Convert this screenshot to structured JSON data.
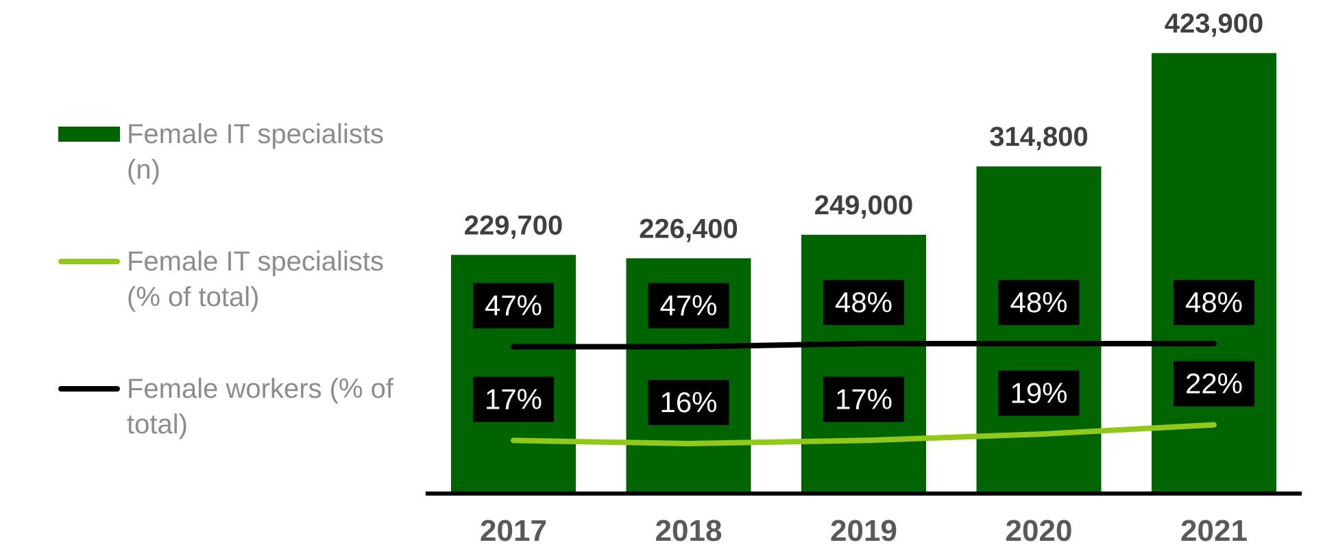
{
  "chart_data": {
    "type": "bar",
    "categories": [
      "2017",
      "2018",
      "2019",
      "2020",
      "2021"
    ],
    "ylim": [
      0,
      475000
    ],
    "y2lim": [
      0,
      158
    ],
    "series": [
      {
        "name": "Female IT specialists (n)",
        "type": "bar",
        "color": "#006400",
        "values": [
          229700,
          226400,
          249000,
          314800,
          423900
        ],
        "value_labels": [
          "229,700",
          "226,400",
          "249,000",
          "314,800",
          "423,900"
        ]
      },
      {
        "name": "Female IT specialists (% of total)",
        "type": "line",
        "axis": "y2",
        "color": "#92c81a",
        "values": [
          17,
          16,
          17,
          19,
          22
        ],
        "value_labels": [
          "17%",
          "16%",
          "17%",
          "19%",
          "22%"
        ]
      },
      {
        "name": "Female workers (% of total)",
        "type": "line",
        "axis": "y2",
        "color": "#000000",
        "values": [
          47,
          47,
          48,
          48,
          48
        ],
        "value_labels": [
          "47%",
          "47%",
          "48%",
          "48%",
          "48%"
        ]
      }
    ]
  }
}
